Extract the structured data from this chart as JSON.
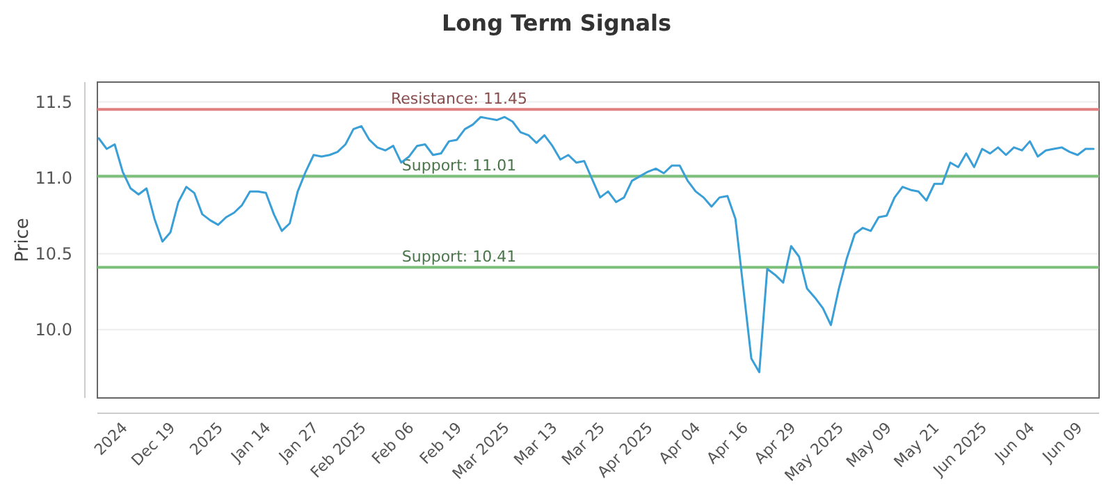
{
  "chart_data": {
    "type": "line",
    "title": "Long Term Signals",
    "ylabel": "Price",
    "categories": [
      null,
      null,
      null,
      "2024",
      null,
      null,
      null,
      null,
      null,
      "Dec 19",
      null,
      null,
      null,
      null,
      null,
      "2025",
      null,
      null,
      null,
      null,
      null,
      "Jan 14",
      null,
      null,
      null,
      null,
      null,
      "Jan 27",
      null,
      null,
      null,
      null,
      null,
      "Feb 2025",
      null,
      null,
      null,
      null,
      null,
      "Feb 06",
      null,
      null,
      null,
      null,
      null,
      "Feb 19",
      null,
      null,
      null,
      null,
      null,
      "Mar 2025",
      null,
      null,
      null,
      null,
      null,
      "Mar 13",
      null,
      null,
      null,
      null,
      null,
      "Mar 25",
      null,
      null,
      null,
      null,
      null,
      "Apr 2025",
      null,
      null,
      null,
      null,
      null,
      "Apr 04",
      null,
      null,
      null,
      null,
      null,
      "Apr 16",
      null,
      null,
      null,
      null,
      null,
      "Apr 29",
      null,
      null,
      null,
      null,
      null,
      "May 2025",
      null,
      null,
      null,
      null,
      null,
      "May 09",
      null,
      null,
      null,
      null,
      null,
      "May 21",
      null,
      null,
      null,
      null,
      null,
      "Jun 2025",
      null,
      null,
      null,
      null,
      null,
      "Jun 04",
      null,
      null,
      null,
      null,
      null,
      "Jun 09",
      null,
      null
    ],
    "series": [
      {
        "color": "#3a9fd6",
        "values": [
          11.26,
          11.19,
          11.22,
          11.04,
          10.93,
          10.89,
          10.93,
          10.73,
          10.58,
          10.64,
          10.84,
          10.94,
          10.9,
          10.76,
          10.72,
          10.69,
          10.74,
          10.77,
          10.82,
          10.91,
          10.91,
          10.9,
          10.76,
          10.65,
          10.7,
          10.91,
          11.04,
          11.15,
          11.14,
          11.15,
          11.17,
          11.22,
          11.32,
          11.34,
          11.25,
          11.2,
          11.18,
          11.21,
          11.1,
          11.14,
          11.21,
          11.22,
          11.15,
          11.16,
          11.24,
          11.25,
          11.32,
          11.35,
          11.4,
          11.39,
          11.38,
          11.4,
          11.37,
          11.3,
          11.28,
          11.23,
          11.28,
          11.21,
          11.12,
          11.15,
          11.1,
          11.11,
          10.99,
          10.87,
          10.91,
          10.84,
          10.87,
          10.98,
          11.01,
          11.04,
          11.06,
          11.03,
          11.08,
          11.08,
          10.98,
          10.91,
          10.87,
          10.81,
          10.87,
          10.88,
          10.73,
          10.27,
          9.81,
          9.72,
          10.4,
          10.36,
          10.31,
          10.55,
          10.48,
          10.27,
          10.21,
          10.14,
          10.03,
          10.27,
          10.47,
          10.63,
          10.67,
          10.65,
          10.74,
          10.75,
          10.87,
          10.94,
          10.92,
          10.91,
          10.85,
          10.96,
          10.96,
          11.1,
          11.07,
          11.16,
          11.07,
          11.19,
          11.16,
          11.2,
          11.15,
          11.2,
          11.18,
          11.24,
          11.14,
          11.18,
          11.19,
          11.2,
          11.17,
          11.15,
          11.19,
          11.19
        ]
      }
    ],
    "ylim": [
      9.55,
      11.63
    ],
    "yticks": [
      {
        "value": 10,
        "label": "10.0"
      },
      {
        "value": 10.5,
        "label": "10.5"
      },
      {
        "value": 11,
        "label": "11.0"
      },
      {
        "value": 11.5,
        "label": "11.5"
      }
    ],
    "grid": "y",
    "ref_lines": [
      {
        "axis": "y",
        "value": 11.45,
        "label": "Resistance: 11.45",
        "color": "#e08080"
      },
      {
        "axis": "y",
        "value": 11.01,
        "label": "Support: 11.01",
        "color": "#7cc07c"
      },
      {
        "axis": "y",
        "value": 10.41,
        "label": "Support: 10.41",
        "color": "#7cc07c"
      }
    ]
  }
}
